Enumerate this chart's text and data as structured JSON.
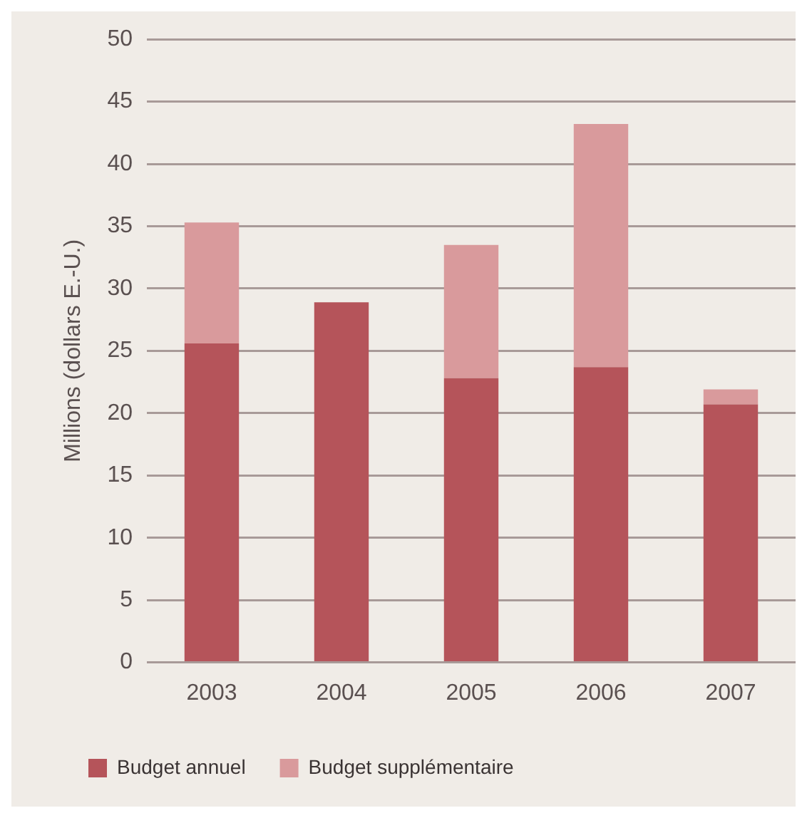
{
  "chart_data": {
    "type": "bar",
    "stacked": true,
    "ylabel": "Millions (dollars E.-U.)",
    "categories": [
      "2003",
      "2004",
      "2005",
      "2006",
      "2007"
    ],
    "series": [
      {
        "name": "Budget annuel",
        "color": "#b5545a",
        "values": [
          25.6,
          28.9,
          22.8,
          23.7,
          20.7
        ]
      },
      {
        "name": "Budget supplémentaire",
        "color": "#d99a9c",
        "values": [
          9.7,
          0,
          10.7,
          19.5,
          1.2
        ]
      }
    ],
    "ylim": [
      0,
      50
    ],
    "yticks": [
      0,
      5,
      10,
      15,
      20,
      25,
      30,
      35,
      40,
      45,
      50
    ],
    "grid": "y",
    "legend": "bottom left"
  }
}
